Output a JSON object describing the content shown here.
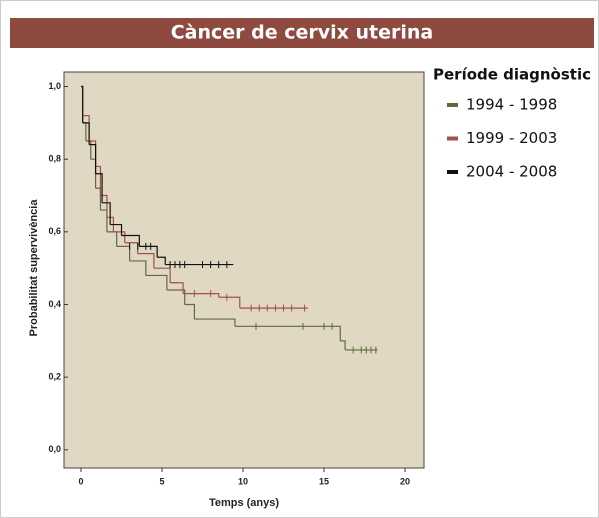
{
  "chart_data": {
    "type": "survival",
    "title": "Càncer de cervix uterina",
    "x_label": "Temps (anys)",
    "y_label": "Probabilitat supervivència",
    "legend_title": "Període diagnòstic",
    "xlim": [
      -1.05,
      21.17
    ],
    "ylim": [
      -0.05,
      1.04
    ],
    "xticks": [
      0,
      5,
      10,
      15,
      20
    ],
    "yticks": [
      {
        "value": 0,
        "label": "0,0"
      },
      {
        "value": 0.2,
        "label": "0,2"
      },
      {
        "value": 0.4,
        "label": "0,4"
      },
      {
        "value": 0.6,
        "label": "0,6"
      },
      {
        "value": 0.8,
        "label": "0,8"
      },
      {
        "value": 1.0,
        "label": "1,0"
      }
    ],
    "background": "#e0d8c2",
    "series": [
      {
        "name": "1994 - 1998",
        "color": "#5f6b3c",
        "x": [
          0,
          0.1,
          0.3,
          0.6,
          0.9,
          1.2,
          1.6,
          2.2,
          3.0,
          4.0,
          5.3,
          6.4,
          7.0,
          9.5,
          16.0,
          16.3,
          18.3
        ],
        "values": [
          1.0,
          0.9,
          0.85,
          0.8,
          0.72,
          0.66,
          0.6,
          0.56,
          0.52,
          0.48,
          0.44,
          0.4,
          0.36,
          0.34,
          0.3,
          0.275,
          0.275
        ],
        "censor_x": [
          10.8,
          13.7,
          15.0,
          15.5,
          16.8,
          17.3,
          17.6,
          17.9,
          18.2
        ],
        "censor_values": [
          0.34,
          0.34,
          0.34,
          0.34,
          0.275,
          0.275,
          0.275,
          0.275,
          0.275
        ]
      },
      {
        "name": "1999 - 2003",
        "color": "#a0524d",
        "x": [
          0,
          0.1,
          0.5,
          0.9,
          1.2,
          1.6,
          2.0,
          2.7,
          3.5,
          4.5,
          5.5,
          6.3,
          8.5,
          9.8,
          14.0
        ],
        "values": [
          1.0,
          0.92,
          0.85,
          0.78,
          0.7,
          0.64,
          0.6,
          0.57,
          0.54,
          0.5,
          0.46,
          0.43,
          0.42,
          0.39,
          0.39
        ],
        "censor_x": [
          7.0,
          8.0,
          9.0,
          10.5,
          11.0,
          11.5,
          12.0,
          12.5,
          13.0,
          13.8
        ],
        "censor_values": [
          0.43,
          0.43,
          0.42,
          0.39,
          0.39,
          0.39,
          0.39,
          0.39,
          0.39,
          0.39
        ]
      },
      {
        "name": "2004 - 2008",
        "color": "#111111",
        "x": [
          0,
          0.1,
          0.5,
          0.9,
          1.3,
          1.8,
          2.5,
          3.6,
          4.7,
          5.2,
          9.4
        ],
        "values": [
          1.0,
          0.9,
          0.84,
          0.76,
          0.68,
          0.62,
          0.59,
          0.56,
          0.53,
          0.51,
          0.51
        ],
        "censor_x": [
          3.0,
          3.5,
          4.0,
          4.3,
          5.5,
          5.8,
          6.1,
          6.4,
          7.5,
          8.0,
          8.5,
          9.0
        ],
        "censor_values": [
          0.56,
          0.56,
          0.56,
          0.56,
          0.51,
          0.51,
          0.51,
          0.51,
          0.51,
          0.51,
          0.51,
          0.51
        ]
      }
    ]
  }
}
